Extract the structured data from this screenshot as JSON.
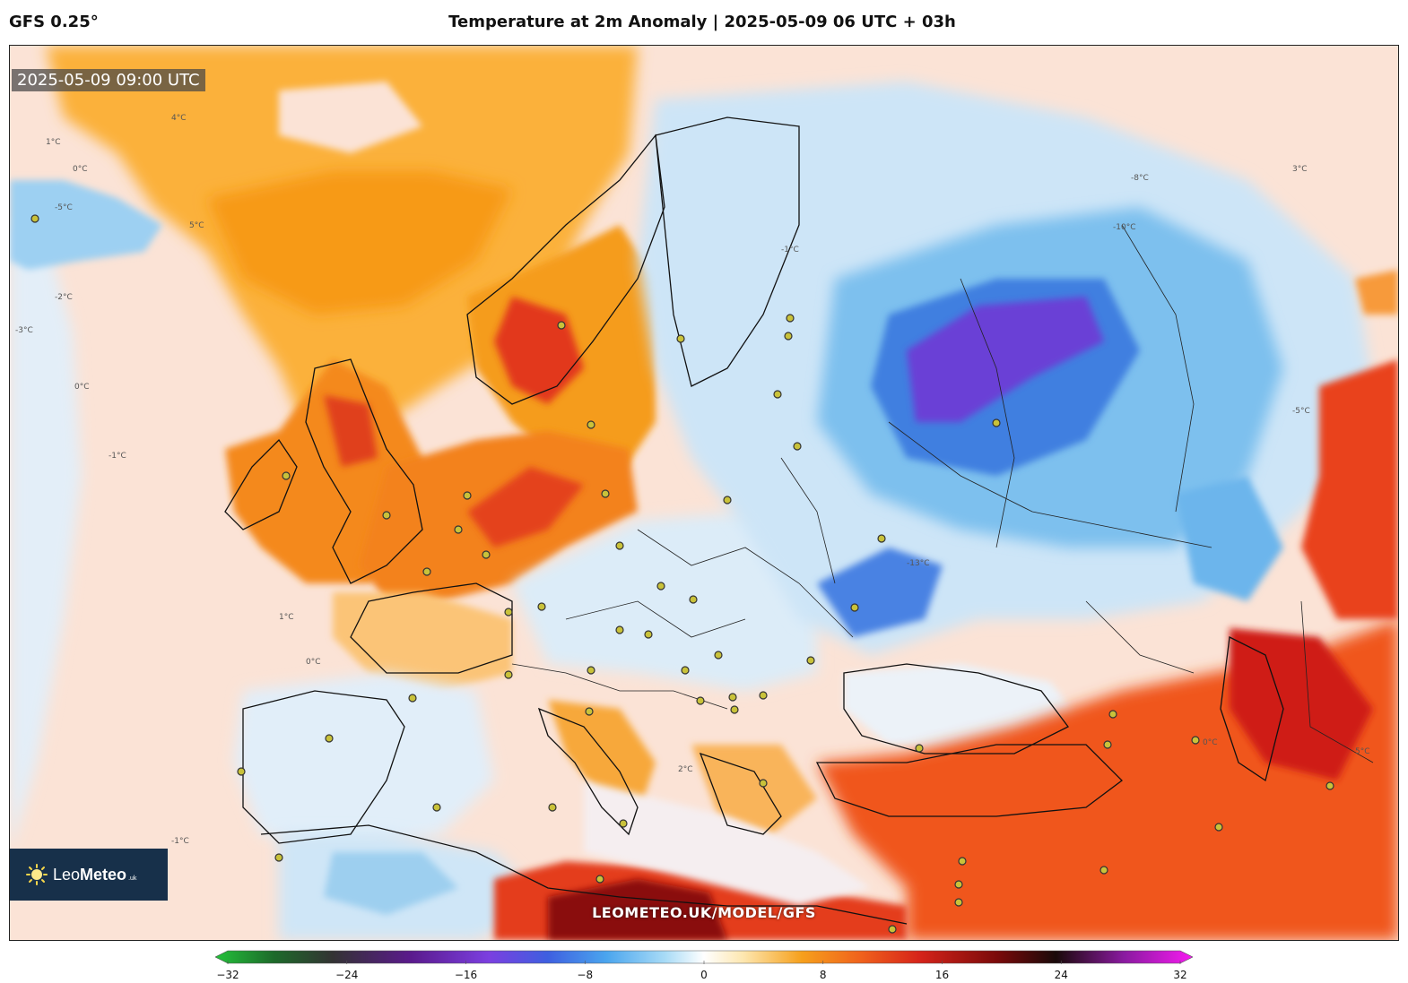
{
  "header": {
    "model": "GFS 0.25°",
    "title": "Temperature at 2m Anomaly | 2025-05-09 06 UTC + 03h"
  },
  "map": {
    "timestamp": "2025-05-09 09:00 UTC",
    "watermark": "LEOMETEO.UK/MODEL/GFS",
    "logo": {
      "prefix": "Leo",
      "bold": "Meteo",
      "tld": ".uk",
      "icon": "sun-icon"
    },
    "contour_labels": [
      "4°C",
      "0°C",
      "1°C",
      "-5°C",
      "5°C",
      "-2°C",
      "-3°C",
      "0°C",
      "-1°C",
      "1°C",
      "0°C",
      "2°C",
      "-1°C",
      "-10°C",
      "-8°C",
      "-13°C",
      "-1°C",
      "0°C",
      "3°C",
      "5°C",
      "-5°C"
    ],
    "colors": {
      "warm_strong": "#e8341c",
      "warm": "#f7a21b",
      "warm_light": "#fbd49a",
      "neutral": "#fbe3d6",
      "cool_light": "#dcecf8",
      "cool": "#7cc3ef",
      "cold": "#3d86e0",
      "very_cold": "#6b3fd6"
    }
  },
  "colorbar": {
    "min": -32,
    "max": 32,
    "ticks": [
      "−32",
      "−24",
      "−16",
      "−8",
      "0",
      "8",
      "16",
      "24",
      "32"
    ],
    "tick_values": [
      -32,
      -24,
      -16,
      -8,
      0,
      8,
      16,
      24,
      32
    ]
  }
}
